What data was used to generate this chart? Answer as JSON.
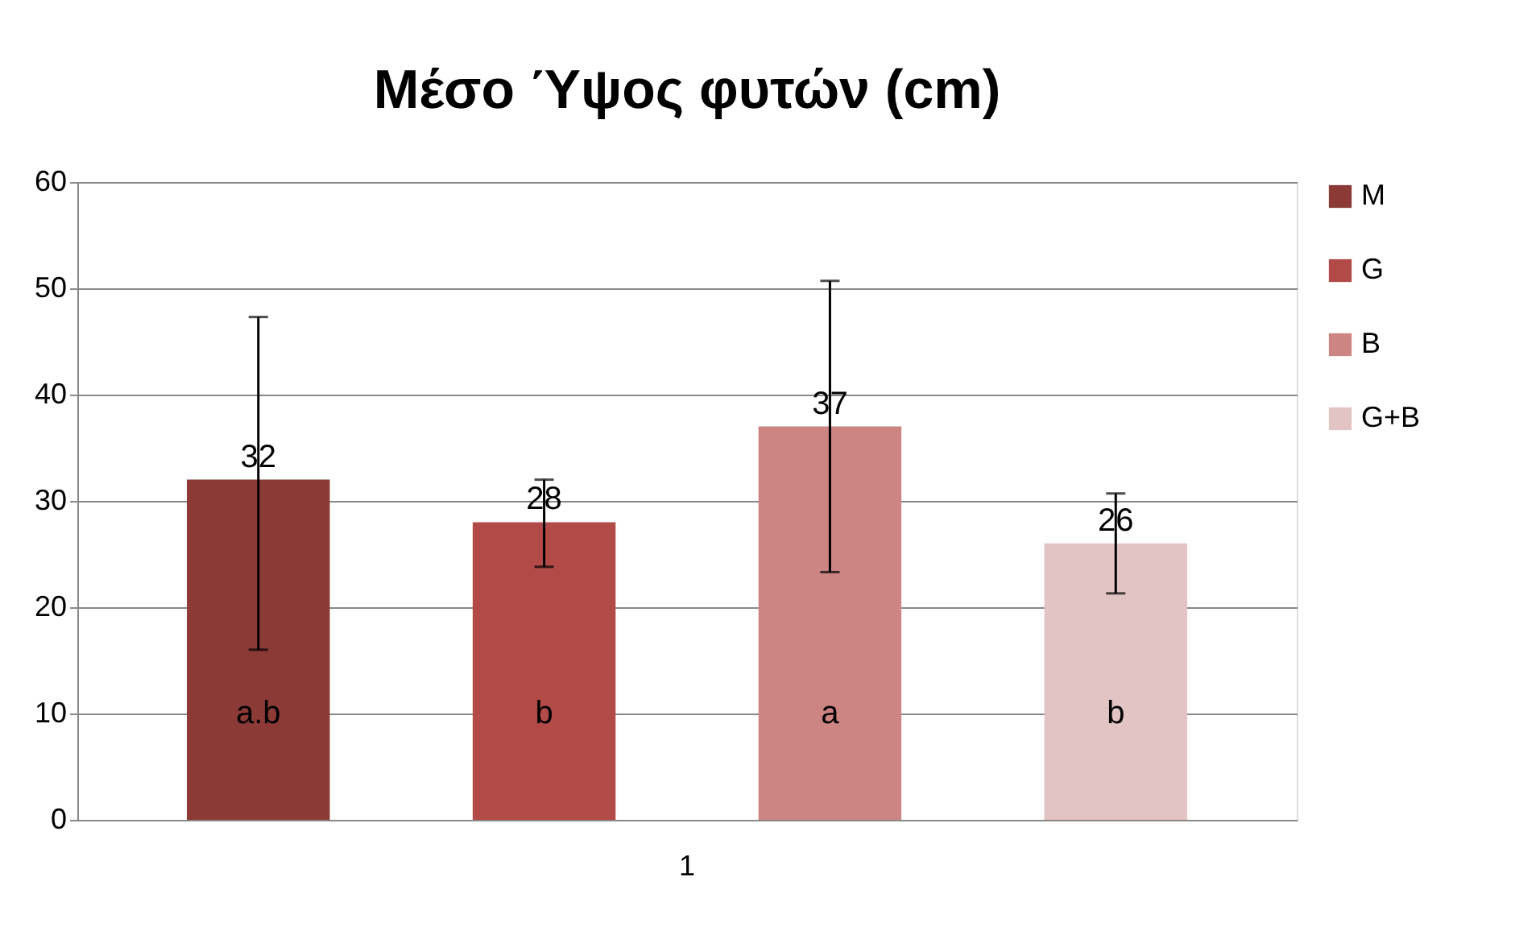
{
  "chart_data": {
    "type": "bar",
    "title": "Μέσο Ύψος φυτών (cm)",
    "categories": [
      "1"
    ],
    "series": [
      {
        "name": "M",
        "color": "#8b3a36",
        "values": [
          32
        ],
        "errors": [
          [
            16,
            47.3
          ]
        ]
      },
      {
        "name": "G",
        "color": "#b24a48",
        "values": [
          28
        ],
        "errors": [
          [
            23.8,
            32
          ]
        ]
      },
      {
        "name": "B",
        "color": "#cd8583",
        "values": [
          37
        ],
        "errors": [
          [
            23.3,
            50.7
          ]
        ]
      },
      {
        "name": "G+B",
        "color": "#e3c4c4",
        "values": [
          26
        ],
        "errors": [
          [
            21.3,
            30.7
          ]
        ]
      }
    ],
    "ylim": [
      0,
      60
    ],
    "yticks": [
      0,
      10,
      20,
      30,
      40,
      50,
      60
    ],
    "grid": "y",
    "legend": "right",
    "data_labels": true,
    "annotations": [
      "a.b",
      "b",
      "a",
      "b"
    ]
  }
}
